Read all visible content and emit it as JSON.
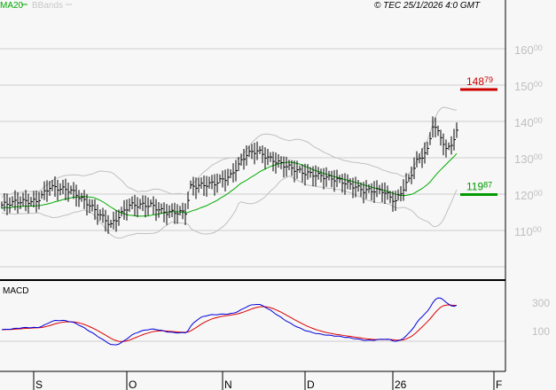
{
  "header": {
    "legend_ma": "MA20",
    "legend_bb": "BBands",
    "copyright": "© TEC 25/1/2026 4:0 GMT"
  },
  "colors": {
    "ma": "#00aa00",
    "bb": "#c0c0c0",
    "macd": "#0000dd",
    "signal": "#dd0000",
    "support": "#009900",
    "resistance": "#cc0000"
  },
  "chart_data": {
    "type": "ohlc",
    "price_axis": {
      "ticks": [
        {
          "value": 160,
          "label": "16000"
        },
        {
          "value": 150,
          "label": "15000"
        },
        {
          "value": 140,
          "label": "14000"
        },
        {
          "value": 130,
          "label": "13000"
        },
        {
          "value": 120,
          "label": "12000"
        },
        {
          "value": 110,
          "label": "11000"
        }
      ],
      "range": [
        97,
        167
      ]
    },
    "levels": [
      {
        "name": "resistance",
        "value": 148.79,
        "label": "14879"
      },
      {
        "name": "support",
        "value": 119.87,
        "label": "11987"
      }
    ],
    "x_labels": [
      {
        "label": "S",
        "bar": 13
      },
      {
        "label": "O",
        "bar": 48
      },
      {
        "label": "N",
        "bar": 84
      },
      {
        "label": "D",
        "bar": 115
      },
      {
        "label": "26",
        "bar": 148
      },
      {
        "label": "F",
        "bar": 186
      }
    ],
    "close_keypoints": [
      [
        0,
        117
      ],
      [
        6,
        118
      ],
      [
        13,
        118
      ],
      [
        18,
        122
      ],
      [
        26,
        121
      ],
      [
        33,
        117
      ],
      [
        41,
        111.5
      ],
      [
        48,
        117
      ],
      [
        56,
        117
      ],
      [
        61,
        115
      ],
      [
        69,
        115
      ],
      [
        71,
        122
      ],
      [
        80,
        123
      ],
      [
        86,
        125
      ],
      [
        92,
        131
      ],
      [
        96,
        132
      ],
      [
        100,
        130
      ],
      [
        106,
        128
      ],
      [
        113,
        126
      ],
      [
        120,
        125
      ],
      [
        126,
        124
      ],
      [
        133,
        122
      ],
      [
        136,
        121
      ],
      [
        143,
        121
      ],
      [
        148,
        118
      ],
      [
        153,
        124
      ],
      [
        156,
        129
      ],
      [
        160,
        132
      ],
      [
        162,
        139
      ],
      [
        165,
        136
      ],
      [
        167,
        132
      ],
      [
        170,
        135
      ],
      [
        171,
        137
      ]
    ],
    "macd_pane": {
      "title": "MACD",
      "ticks": [
        {
          "value": 300,
          "label": "300"
        },
        {
          "value": 100,
          "label": "100"
        }
      ]
    }
  }
}
